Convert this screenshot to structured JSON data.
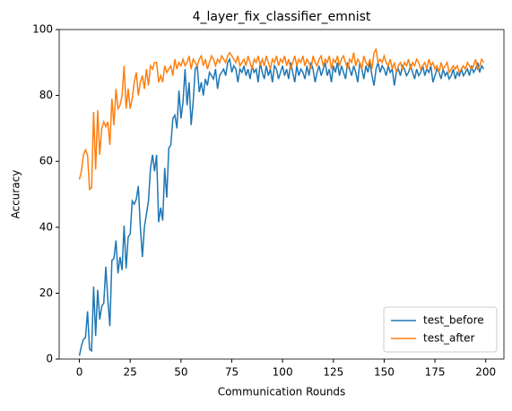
{
  "chart_data": {
    "type": "line",
    "title": "4_layer_fix_classifier_emnist",
    "xlabel": "Communication Rounds",
    "ylabel": "Accuracy",
    "x": [
      0,
      1,
      2,
      3,
      4,
      5,
      6,
      7,
      8,
      9,
      10,
      11,
      12,
      13,
      14,
      15,
      16,
      17,
      18,
      19,
      20,
      21,
      22,
      23,
      24,
      25,
      26,
      27,
      28,
      29,
      30,
      31,
      32,
      33,
      34,
      35,
      36,
      37,
      38,
      39,
      40,
      41,
      42,
      43,
      44,
      45,
      46,
      47,
      48,
      49,
      50,
      51,
      52,
      53,
      54,
      55,
      56,
      57,
      58,
      59,
      60,
      61,
      62,
      63,
      64,
      65,
      66,
      67,
      68,
      69,
      70,
      71,
      72,
      73,
      74,
      75,
      76,
      77,
      78,
      79,
      80,
      81,
      82,
      83,
      84,
      85,
      86,
      87,
      88,
      89,
      90,
      91,
      92,
      93,
      94,
      95,
      96,
      97,
      98,
      99,
      100,
      101,
      102,
      103,
      104,
      105,
      106,
      107,
      108,
      109,
      110,
      111,
      112,
      113,
      114,
      115,
      116,
      117,
      118,
      119,
      120,
      121,
      122,
      123,
      124,
      125,
      126,
      127,
      128,
      129,
      130,
      131,
      132,
      133,
      134,
      135,
      136,
      137,
      138,
      139,
      140,
      141,
      142,
      143,
      144,
      145,
      146,
      147,
      148,
      149,
      150,
      151,
      152,
      153,
      154,
      155,
      156,
      157,
      158,
      159,
      160,
      161,
      162,
      163,
      164,
      165,
      166,
      167,
      168,
      169,
      170,
      171,
      172,
      173,
      174,
      175,
      176,
      177,
      178,
      179,
      180,
      181,
      182,
      183,
      184,
      185,
      186,
      187,
      188,
      189,
      190,
      191,
      192,
      193,
      194,
      195,
      196,
      197,
      198,
      199
    ],
    "series": [
      {
        "name": "test_before",
        "color": "#1f77b4",
        "values": [
          1,
          4,
          6,
          6.5,
          14.5,
          3,
          2.5,
          22,
          7,
          21,
          12,
          16,
          17,
          28,
          18,
          10,
          30,
          30.5,
          36,
          26,
          31,
          27,
          40.5,
          27.5,
          37,
          38,
          48,
          47,
          48.5,
          52.5,
          40,
          31,
          40,
          44,
          48,
          58,
          62,
          57,
          62,
          41.5,
          46,
          42,
          58,
          49,
          64,
          65,
          73,
          74,
          70,
          81.5,
          73,
          78,
          88,
          77,
          84,
          71,
          78,
          88,
          89,
          81,
          84,
          80,
          85,
          83,
          87,
          86,
          85,
          88,
          82,
          86,
          87,
          88,
          86,
          90,
          91,
          87,
          89,
          88,
          84,
          88,
          87,
          89,
          86,
          88,
          85,
          89,
          87,
          88,
          84,
          90,
          87,
          85,
          89,
          86,
          88,
          84,
          89,
          88,
          85,
          87,
          89,
          86,
          88,
          85,
          90,
          87,
          84,
          89,
          86,
          88,
          87,
          85,
          89,
          86,
          90,
          88,
          84,
          87,
          89,
          86,
          88,
          90,
          86,
          88,
          84,
          89,
          87,
          90,
          86,
          89,
          87,
          85,
          90,
          88,
          86,
          89,
          87,
          84,
          90,
          88,
          85,
          89,
          87,
          90,
          86,
          83,
          88,
          90,
          87,
          89,
          88,
          86,
          89,
          87,
          88,
          83,
          87,
          88,
          86,
          89,
          88,
          86,
          87,
          89,
          87,
          85,
          88,
          86,
          87,
          89,
          86,
          88,
          87,
          89,
          84,
          86,
          88,
          87,
          85,
          88,
          86,
          87,
          85,
          86,
          88,
          85,
          87,
          86,
          88,
          86,
          87,
          88,
          86,
          89,
          87,
          88,
          90,
          87,
          89,
          88
        ]
      },
      {
        "name": "test_after",
        "color": "#ff7f0e",
        "values": [
          54.5,
          57,
          62,
          63.5,
          62,
          51.5,
          52,
          75,
          57.5,
          75.5,
          62,
          70,
          72,
          70.5,
          72,
          65,
          79,
          71,
          82,
          76,
          77,
          80,
          89,
          76,
          82,
          76,
          79,
          84,
          87,
          80,
          84,
          86,
          82,
          88,
          83,
          89,
          88,
          90,
          90,
          84,
          86,
          84,
          89,
          87,
          88,
          89,
          86,
          91,
          88,
          90,
          89,
          91,
          89,
          90,
          92,
          88,
          91,
          90,
          89,
          91,
          92,
          89,
          91,
          88,
          90,
          92,
          91,
          89,
          91,
          90,
          92,
          91,
          90,
          92,
          93,
          92,
          91,
          90,
          92,
          89,
          90,
          91,
          89,
          92,
          90,
          88,
          91,
          90,
          92,
          89,
          91,
          89,
          92,
          90,
          88,
          91,
          90,
          92,
          89,
          91,
          90,
          92,
          89,
          91,
          88,
          90,
          92,
          89,
          91,
          90,
          92,
          89,
          91,
          90,
          88,
          92,
          90,
          89,
          91,
          92,
          89,
          91,
          90,
          92,
          88,
          91,
          90,
          92,
          89,
          91,
          92,
          90,
          88,
          91,
          90,
          93,
          89,
          91,
          90,
          88,
          92,
          90,
          89,
          91,
          88,
          93,
          94,
          90,
          91,
          90,
          92,
          90,
          89,
          91,
          88,
          90,
          87,
          89,
          90,
          88,
          90,
          89,
          91,
          88,
          90,
          89,
          91,
          90,
          88,
          89,
          90,
          88,
          91,
          89,
          90,
          88,
          89,
          87,
          90,
          88,
          89,
          90,
          87,
          88,
          89,
          88,
          89,
          87,
          88,
          89,
          88,
          90,
          89,
          88,
          89,
          91,
          88,
          89,
          91,
          90
        ]
      }
    ],
    "xlim": [
      -9.95,
      208.95
    ],
    "ylim": [
      0,
      100
    ],
    "xticks": [
      0,
      25,
      50,
      75,
      100,
      125,
      150,
      175,
      200
    ],
    "yticks": [
      0,
      20,
      40,
      60,
      80,
      100
    ],
    "legend": "lower right"
  }
}
